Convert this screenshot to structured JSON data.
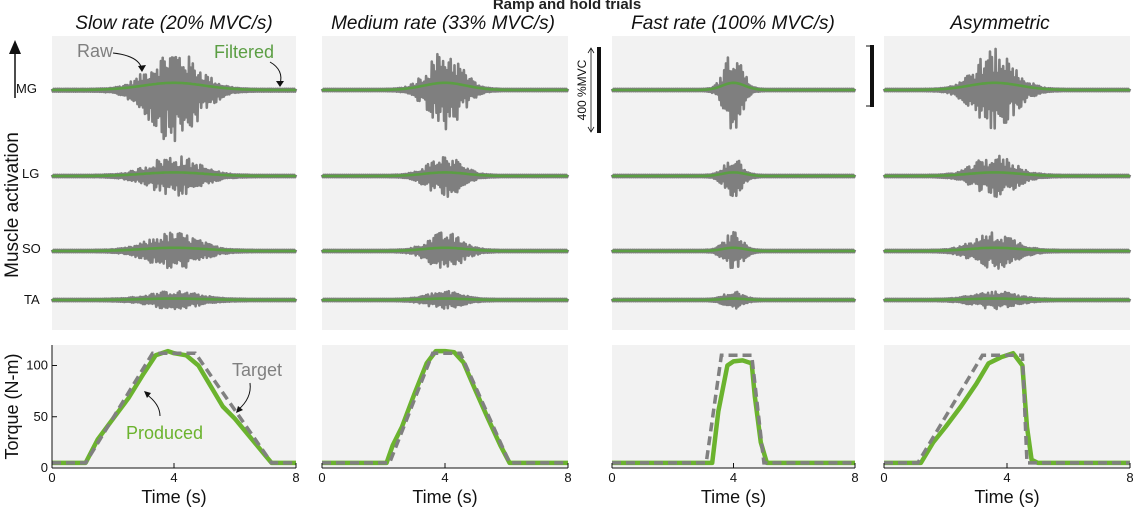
{
  "figure_title": "Ramp and hold trials",
  "colors": {
    "raw": "#7f7f7f",
    "filtered": "#5b9e43",
    "produced": "#6bb32e",
    "target": "#808080",
    "panel_bg": "#f2f2f2"
  },
  "labels": {
    "raw": "Raw",
    "filtered": "Filtered",
    "produced": "Produced",
    "target": "Target",
    "muscle_activation": "Muscle activation",
    "scale_bar": "400 %MVC"
  },
  "muscles": [
    "MG",
    "LG",
    "SO",
    "TA"
  ],
  "chart_data": [
    {
      "type": "line",
      "title": "Slow rate (20% MVC/s)",
      "xlabel": "Time (s)",
      "ylabel": "Torque (N-m)",
      "xlim": [
        0,
        8
      ],
      "ylim": [
        0,
        120
      ],
      "xticks": [
        0,
        4,
        8
      ],
      "yticks": [
        0,
        50,
        100
      ],
      "series": [
        {
          "name": "Target",
          "x": [
            0,
            1.1,
            3.3,
            4.7,
            7.2,
            8
          ],
          "y": [
            5,
            5,
            112,
            112,
            5,
            5
          ]
        },
        {
          "name": "Produced",
          "x": [
            0,
            1.1,
            1.5,
            2.0,
            2.5,
            3.0,
            3.4,
            3.8,
            4.0,
            4.4,
            4.8,
            5.2,
            5.6,
            6.0,
            6.5,
            7.0,
            7.2,
            8
          ],
          "y": [
            5,
            5,
            28,
            48,
            68,
            92,
            110,
            114,
            112,
            110,
            100,
            80,
            60,
            48,
            30,
            12,
            5,
            5
          ]
        }
      ],
      "emg_envelope": {
        "center": 4.0,
        "width": 1.1
      }
    },
    {
      "type": "line",
      "title": "Medium rate (33% MVC/s)",
      "xlabel": "Time (s)",
      "ylabel": "",
      "xlim": [
        0,
        8
      ],
      "ylim": [
        0,
        120
      ],
      "xticks": [
        0,
        4,
        8
      ],
      "yticks": [],
      "series": [
        {
          "name": "Target",
          "x": [
            0,
            2.2,
            3.6,
            4.5,
            6.1,
            8
          ],
          "y": [
            5,
            5,
            112,
            112,
            5,
            5
          ]
        },
        {
          "name": "Produced",
          "x": [
            0,
            2.1,
            2.3,
            2.6,
            3.0,
            3.4,
            3.7,
            4.0,
            4.3,
            4.6,
            5.0,
            5.4,
            5.8,
            6.1,
            8
          ],
          "y": [
            5,
            5,
            22,
            40,
            72,
            102,
            114,
            114,
            113,
            103,
            75,
            48,
            22,
            5,
            5
          ]
        }
      ],
      "emg_envelope": {
        "center": 4.0,
        "width": 0.75
      }
    },
    {
      "type": "line",
      "title": "Fast rate (100% MVC/s)",
      "xlabel": "Time (s)",
      "ylabel": "",
      "xlim": [
        0,
        8
      ],
      "ylim": [
        0,
        120
      ],
      "xticks": [
        0,
        4,
        8
      ],
      "yticks": [],
      "series": [
        {
          "name": "Target",
          "x": [
            0,
            3.1,
            3.6,
            4.6,
            5.0,
            8
          ],
          "y": [
            5,
            5,
            110,
            110,
            5,
            5
          ]
        },
        {
          "name": "Produced",
          "x": [
            0,
            3.3,
            3.5,
            3.8,
            4.0,
            4.3,
            4.6,
            4.7,
            4.9,
            5.1,
            8
          ],
          "y": [
            5,
            5,
            55,
            100,
            104,
            105,
            102,
            70,
            25,
            5,
            5
          ]
        }
      ],
      "emg_envelope": {
        "center": 4.0,
        "width": 0.4
      }
    },
    {
      "type": "line",
      "title": "Asymmetric",
      "xlabel": "Time (s)",
      "ylabel": "",
      "xlim": [
        0,
        8
      ],
      "ylim": [
        0,
        120
      ],
      "xticks": [
        0,
        4,
        8
      ],
      "yticks": [],
      "series": [
        {
          "name": "Target",
          "x": [
            0,
            1.1,
            3.2,
            4.5,
            4.65,
            8
          ],
          "y": [
            5,
            5,
            110,
            110,
            5,
            5
          ]
        },
        {
          "name": "Produced",
          "x": [
            0,
            1.2,
            1.6,
            2.0,
            2.5,
            3.0,
            3.4,
            3.8,
            4.2,
            4.5,
            4.65,
            4.8,
            5.0,
            8
          ],
          "y": [
            5,
            5,
            25,
            40,
            60,
            82,
            102,
            108,
            112,
            100,
            40,
            8,
            5,
            5
          ]
        }
      ],
      "emg_envelope": {
        "center": 3.6,
        "width": 0.9
      }
    }
  ]
}
